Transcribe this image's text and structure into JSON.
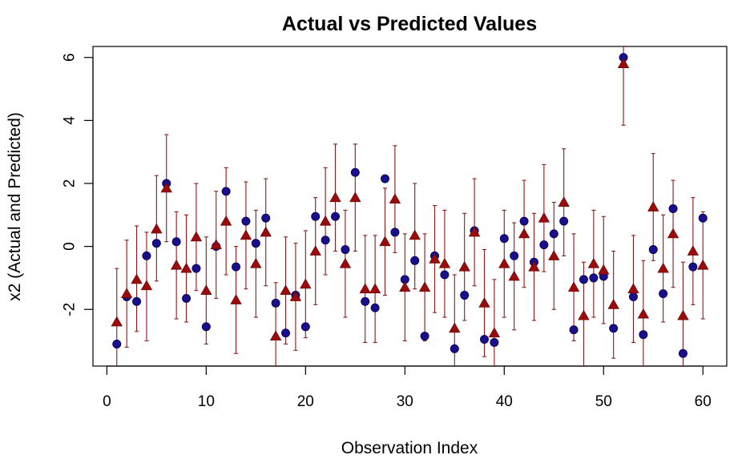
{
  "chart_data": {
    "type": "scatter",
    "title": "Actual vs Predicted Values",
    "xlabel": "Observation Index",
    "ylabel": "x2 (Actual and Predicted)",
    "xlim": [
      -1.4,
      62.4
    ],
    "ylim": [
      -3.8,
      6.35
    ],
    "xticks": [
      0,
      10,
      20,
      30,
      40,
      50,
      60
    ],
    "yticks": [
      -2,
      0,
      2,
      4,
      6
    ],
    "grid": false,
    "legend": "none",
    "colors": {
      "actual": "#1a0f8a",
      "predicted": "#9b0b0b",
      "interval": "#8b1a1a"
    },
    "x": [
      1,
      2,
      3,
      4,
      5,
      6,
      7,
      8,
      9,
      10,
      11,
      12,
      13,
      14,
      15,
      16,
      17,
      18,
      19,
      20,
      21,
      22,
      23,
      24,
      25,
      26,
      27,
      28,
      29,
      30,
      31,
      32,
      33,
      34,
      35,
      36,
      37,
      38,
      39,
      40,
      41,
      42,
      43,
      44,
      45,
      46,
      47,
      48,
      49,
      50,
      51,
      52,
      53,
      54,
      55,
      56,
      57,
      58,
      59,
      60
    ],
    "series": [
      {
        "role": "actual",
        "marker": "circle",
        "values": [
          -3.1,
          -1.6,
          -1.75,
          -0.3,
          0.1,
          2.0,
          0.15,
          -1.65,
          -0.7,
          -2.55,
          0.0,
          1.75,
          -0.65,
          0.8,
          0.1,
          0.9,
          -1.8,
          -2.75,
          -1.55,
          -2.55,
          0.95,
          0.2,
          0.95,
          -0.1,
          2.35,
          -1.75,
          -1.95,
          2.15,
          0.45,
          -1.05,
          -0.45,
          -2.85,
          -0.3,
          -0.9,
          -3.25,
          -1.55,
          0.5,
          -2.95,
          -3.05,
          0.25,
          -0.3,
          0.8,
          -0.5,
          0.05,
          0.4,
          0.8,
          -2.65,
          -1.05,
          -1.0,
          -0.95,
          -2.6,
          6.0,
          -1.6,
          -2.8,
          -0.1,
          -1.5,
          1.2,
          -3.4,
          -0.65,
          0.9
        ]
      },
      {
        "role": "predicted",
        "marker": "triangle",
        "values": [
          -2.4,
          -1.5,
          -1.05,
          -1.25,
          0.55,
          1.85,
          -0.6,
          -0.7,
          0.3,
          -1.4,
          0.05,
          0.8,
          -1.7,
          0.35,
          -0.55,
          0.45,
          -2.85,
          -1.4,
          -1.6,
          -1.2,
          -0.15,
          0.8,
          1.55,
          -0.55,
          1.55,
          -1.35,
          -1.35,
          0.15,
          1.5,
          -1.3,
          0.35,
          -1.3,
          -0.4,
          -0.55,
          -2.6,
          -0.65,
          0.45,
          -1.8,
          -2.75,
          -0.55,
          -0.95,
          0.4,
          -0.65,
          0.9,
          -0.3,
          1.4,
          -1.3,
          -2.2,
          -0.55,
          -0.75,
          -1.85,
          5.8,
          -1.35,
          -2.15,
          1.25,
          -0.7,
          0.4,
          -2.2,
          -0.15,
          -0.6
        ]
      },
      {
        "role": "interval",
        "name": "",
        "lower": [
          -4.1,
          -3.2,
          -2.7,
          -3.0,
          -1.1,
          0.15,
          -2.3,
          -2.4,
          -1.4,
          -3.1,
          -1.65,
          -0.9,
          -3.4,
          -1.35,
          -2.25,
          -1.25,
          -4.5,
          -3.1,
          -3.3,
          -2.9,
          -1.85,
          -0.9,
          -0.15,
          -2.25,
          -0.15,
          -3.05,
          -3.05,
          -1.55,
          -0.2,
          -3.0,
          -1.35,
          -3.0,
          -2.1,
          -2.25,
          -4.3,
          -2.35,
          -1.25,
          -3.5,
          -4.45,
          -2.25,
          -2.65,
          -1.3,
          -2.35,
          -0.8,
          -2.0,
          -0.3,
          -3.0,
          -3.9,
          -2.25,
          -2.45,
          -3.55,
          3.85,
          -3.05,
          -3.85,
          -0.45,
          -2.4,
          -1.3,
          -3.9,
          -1.85,
          -2.3
        ],
        "upper": [
          -0.7,
          0.2,
          0.65,
          0.45,
          2.25,
          3.55,
          1.1,
          1.0,
          2.0,
          0.3,
          1.75,
          2.5,
          0.0,
          2.05,
          1.15,
          2.15,
          -1.15,
          0.3,
          0.1,
          0.5,
          1.55,
          2.5,
          3.25,
          1.15,
          3.25,
          0.35,
          0.35,
          1.85,
          3.2,
          0.4,
          2.0,
          0.4,
          1.3,
          1.15,
          -0.9,
          1.05,
          2.15,
          -0.1,
          -1.05,
          1.15,
          0.75,
          2.1,
          1.05,
          2.6,
          1.4,
          3.1,
          0.4,
          -0.5,
          1.15,
          0.95,
          -0.15,
          7.5,
          0.35,
          -0.45,
          2.95,
          1.0,
          2.1,
          -0.5,
          1.55,
          1.1
        ]
      }
    ]
  }
}
